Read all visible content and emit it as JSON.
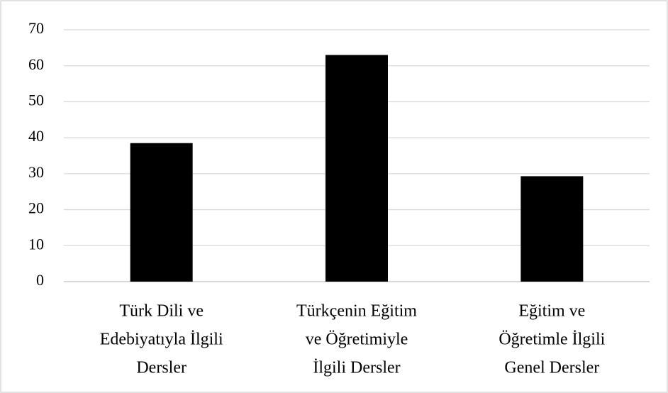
{
  "chart_data": {
    "type": "bar",
    "categories": [
      [
        "Türk Dili ve",
        "Edebiyatıyla İlgili",
        "Dersler"
      ],
      [
        "Türkçenin Eğitim",
        "ve Öğretimiyle",
        "İlgili Dersler"
      ],
      [
        "Eğitim ve",
        "Öğretimle İlgili",
        "Genel Dersler"
      ]
    ],
    "values": [
      38.5,
      63,
      29.3
    ],
    "color": "#000000",
    "ylim": [
      0,
      70
    ],
    "yticks": [
      0,
      10,
      20,
      30,
      40,
      50,
      60,
      70
    ],
    "grid": true
  }
}
